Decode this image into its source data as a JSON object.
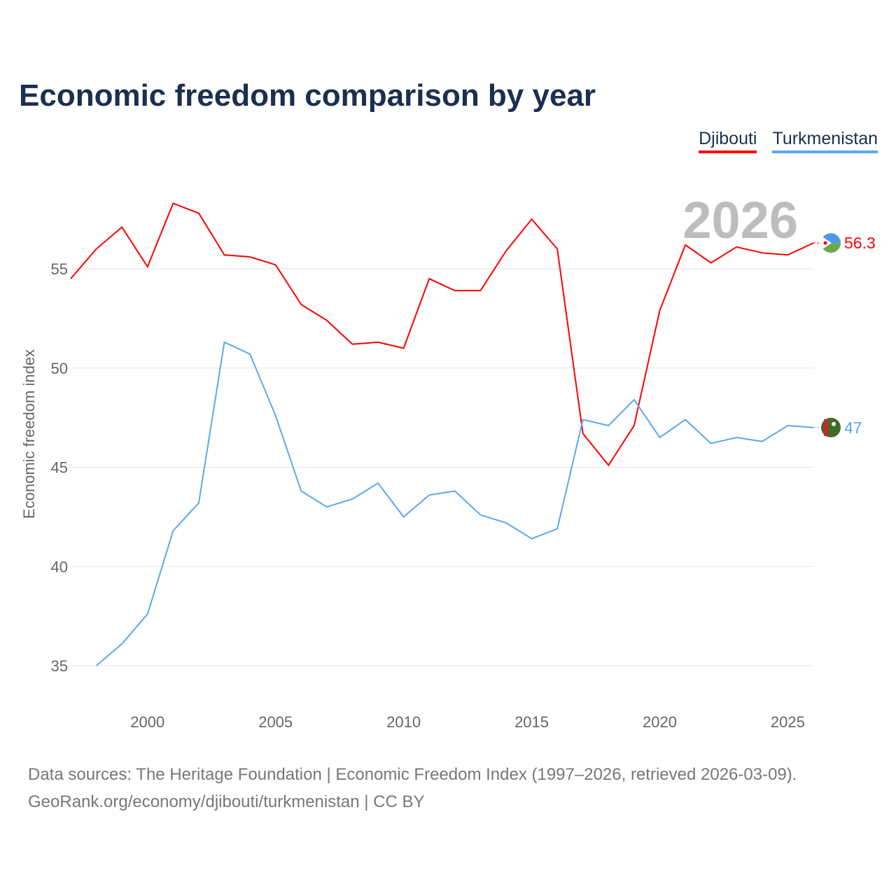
{
  "title": "Economic freedom comparison by year",
  "colors": {
    "Djibouti": "#ff0000",
    "Turkmenistan": "#5ba7ef"
  },
  "chart_data": {
    "type": "line",
    "title": "Economic freedom comparison by year",
    "xlabel": "",
    "ylabel": "Economic freedom index",
    "xlim": [
      1997,
      2026
    ],
    "ylim": [
      33,
      59
    ],
    "x_ticks": [
      2000,
      2005,
      2010,
      2015,
      2020,
      2025
    ],
    "y_ticks": [
      35,
      40,
      45,
      50,
      55
    ],
    "grid": true,
    "legend_placement": "top-right",
    "year_label": "2026",
    "series": [
      {
        "name": "Djibouti",
        "end_label": "56.3",
        "x": [
          1997,
          1998,
          1999,
          2000,
          2001,
          2002,
          2003,
          2004,
          2005,
          2006,
          2007,
          2008,
          2009,
          2010,
          2011,
          2012,
          2013,
          2014,
          2015,
          2016,
          2017,
          2018,
          2019,
          2020,
          2021,
          2022,
          2023,
          2024,
          2025,
          2026
        ],
        "values": [
          54.5,
          56.0,
          57.1,
          55.1,
          58.3,
          57.8,
          55.7,
          55.6,
          55.2,
          53.2,
          52.4,
          51.2,
          51.3,
          51.0,
          54.5,
          53.9,
          53.9,
          55.9,
          57.5,
          56.0,
          46.7,
          45.1,
          47.1,
          52.9,
          56.2,
          55.3,
          56.1,
          55.8,
          55.7,
          56.3
        ]
      },
      {
        "name": "Turkmenistan",
        "end_label": "47",
        "x": [
          1998,
          1999,
          2000,
          2001,
          2002,
          2003,
          2004,
          2005,
          2006,
          2007,
          2008,
          2009,
          2010,
          2011,
          2012,
          2013,
          2014,
          2015,
          2016,
          2017,
          2018,
          2019,
          2020,
          2021,
          2022,
          2023,
          2024,
          2025,
          2026
        ],
        "values": [
          35.0,
          36.1,
          37.6,
          41.8,
          43.2,
          51.3,
          50.7,
          47.6,
          43.8,
          43.0,
          43.4,
          44.2,
          42.5,
          43.6,
          43.8,
          42.6,
          42.2,
          41.4,
          41.9,
          47.4,
          47.1,
          48.4,
          46.5,
          47.4,
          46.2,
          46.5,
          46.3,
          47.1,
          47.0
        ]
      }
    ]
  },
  "source": {
    "line1": "Data sources: The Heritage Foundation | Economic Freedom Index (1997–2026, retrieved 2026-03-09).",
    "line2": "GeoRank.org/economy/djibouti/turkmenistan | CC BY"
  }
}
